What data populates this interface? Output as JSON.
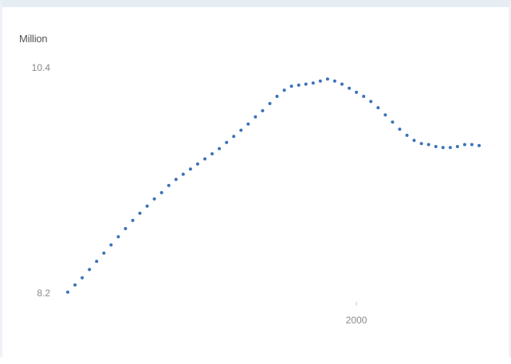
{
  "chart_data": {
    "type": "scatter",
    "unit_label": "Million",
    "title": "",
    "xlabel": "",
    "ylabel": "",
    "xlim": [
      1960,
      2017
    ],
    "ylim": [
      8.2,
      10.4
    ],
    "y_ticks": [
      "10.4",
      "8.2"
    ],
    "x_ticks": [
      {
        "value": 2000,
        "label": "2000"
      }
    ],
    "series": [
      {
        "color": "#3a73b6",
        "marker": "dot",
        "x": [
          1960,
          1961,
          1962,
          1963,
          1964,
          1965,
          1966,
          1967,
          1968,
          1969,
          1970,
          1971,
          1972,
          1973,
          1974,
          1975,
          1976,
          1977,
          1978,
          1979,
          1980,
          1981,
          1982,
          1983,
          1984,
          1985,
          1986,
          1987,
          1988,
          1989,
          1990,
          1991,
          1992,
          1993,
          1994,
          1995,
          1996,
          1997,
          1998,
          1999,
          2000,
          2001,
          2002,
          2003,
          2004,
          2005,
          2006,
          2007,
          2008,
          2009,
          2010,
          2011,
          2012,
          2013,
          2014,
          2015,
          2016,
          2017
        ],
        "y": [
          8.21,
          8.28,
          8.35,
          8.43,
          8.51,
          8.59,
          8.67,
          8.75,
          8.83,
          8.91,
          8.98,
          9.05,
          9.12,
          9.18,
          9.25,
          9.31,
          9.36,
          9.41,
          9.46,
          9.51,
          9.56,
          9.61,
          9.67,
          9.73,
          9.79,
          9.85,
          9.92,
          9.98,
          10.05,
          10.12,
          10.18,
          10.22,
          10.23,
          10.24,
          10.25,
          10.27,
          10.29,
          10.27,
          10.24,
          10.2,
          10.16,
          10.12,
          10.07,
          10.01,
          9.94,
          9.87,
          9.8,
          9.74,
          9.69,
          9.66,
          9.65,
          9.63,
          9.62,
          9.62,
          9.63,
          9.65,
          9.65,
          9.64
        ]
      }
    ]
  }
}
